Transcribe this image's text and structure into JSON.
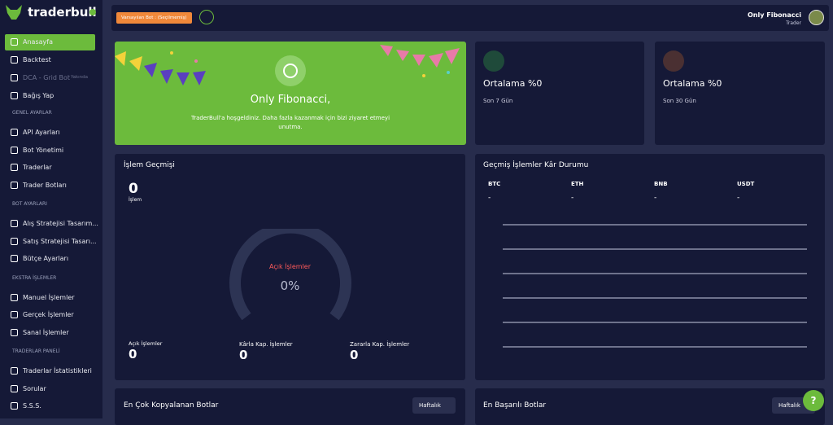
{
  "sidebar": {
    "logo": "traderbull",
    "items": [
      "Anasayfa",
      "Backtest",
      "DCA - Grid Bot",
      "Bağış Yap"
    ],
    "badge": "Yakında",
    "sections": [
      {
        "title": "GENEL AYARLAR",
        "items": [
          "API Ayarları",
          "Bot Yönetimi",
          "Traderlar",
          "Trader Botları"
        ]
      },
      {
        "title": "BOT AYARLARI",
        "items": [
          "Alış Stratejisi Tasarım...",
          "Satış Stratejisi Tasarı...",
          "Bütçe Ayarları"
        ]
      },
      {
        "title": "EKSTRA İŞLEMLER",
        "items": [
          "Manuel İşlemler",
          "Gerçek İşlemler",
          "Sanal İşlemler"
        ]
      },
      {
        "title": "TRADERLAR PANELİ",
        "items": [
          "Traderlar İstatistikleri",
          "Sorular",
          "S.S.S."
        ]
      }
    ]
  },
  "header": {
    "default_bot": "Varsayılan Bot : (Seçilmemiş)",
    "user_name": "Only Fibonacci",
    "user_role": "Trader"
  },
  "welcome": {
    "title": "Only Fibonacci,",
    "message": "TraderBull'a hoşgeldiniz. Daha fazla kazanmak için bizi ziyaret etmeyi unutma."
  },
  "stats": [
    {
      "title": "Ortalama %0",
      "period": "Son 7 Gün"
    },
    {
      "title": "Ortalama %0",
      "period": "Son 30 Gün"
    }
  ],
  "history": {
    "title": "İşlem Geçmişi",
    "count": "0",
    "count_label": "İşlem",
    "gauge_label": "Açık İşlemler",
    "gauge_value": "0%",
    "totals": [
      {
        "label": "Açık İşlemler",
        "value": "0"
      },
      {
        "label": "Kârla Kap. İşlemler",
        "value": "0"
      },
      {
        "label": "Zararla Kap. İşlemler",
        "value": "0"
      }
    ]
  },
  "profit": {
    "title": "Geçmiş İşlemler Kâr Durumu",
    "coins": [
      {
        "name": "BTC",
        "value": "-"
      },
      {
        "name": "ETH",
        "value": "-"
      },
      {
        "name": "BNB",
        "value": "-"
      },
      {
        "name": "USDT",
        "value": "-"
      }
    ]
  },
  "bottom": [
    {
      "title": "En Çok Kopyalanan Botlar",
      "filter": "Haftalık"
    },
    {
      "title": "En Başarılı Botlar",
      "filter": "Haftalık"
    }
  ],
  "help": "?"
}
